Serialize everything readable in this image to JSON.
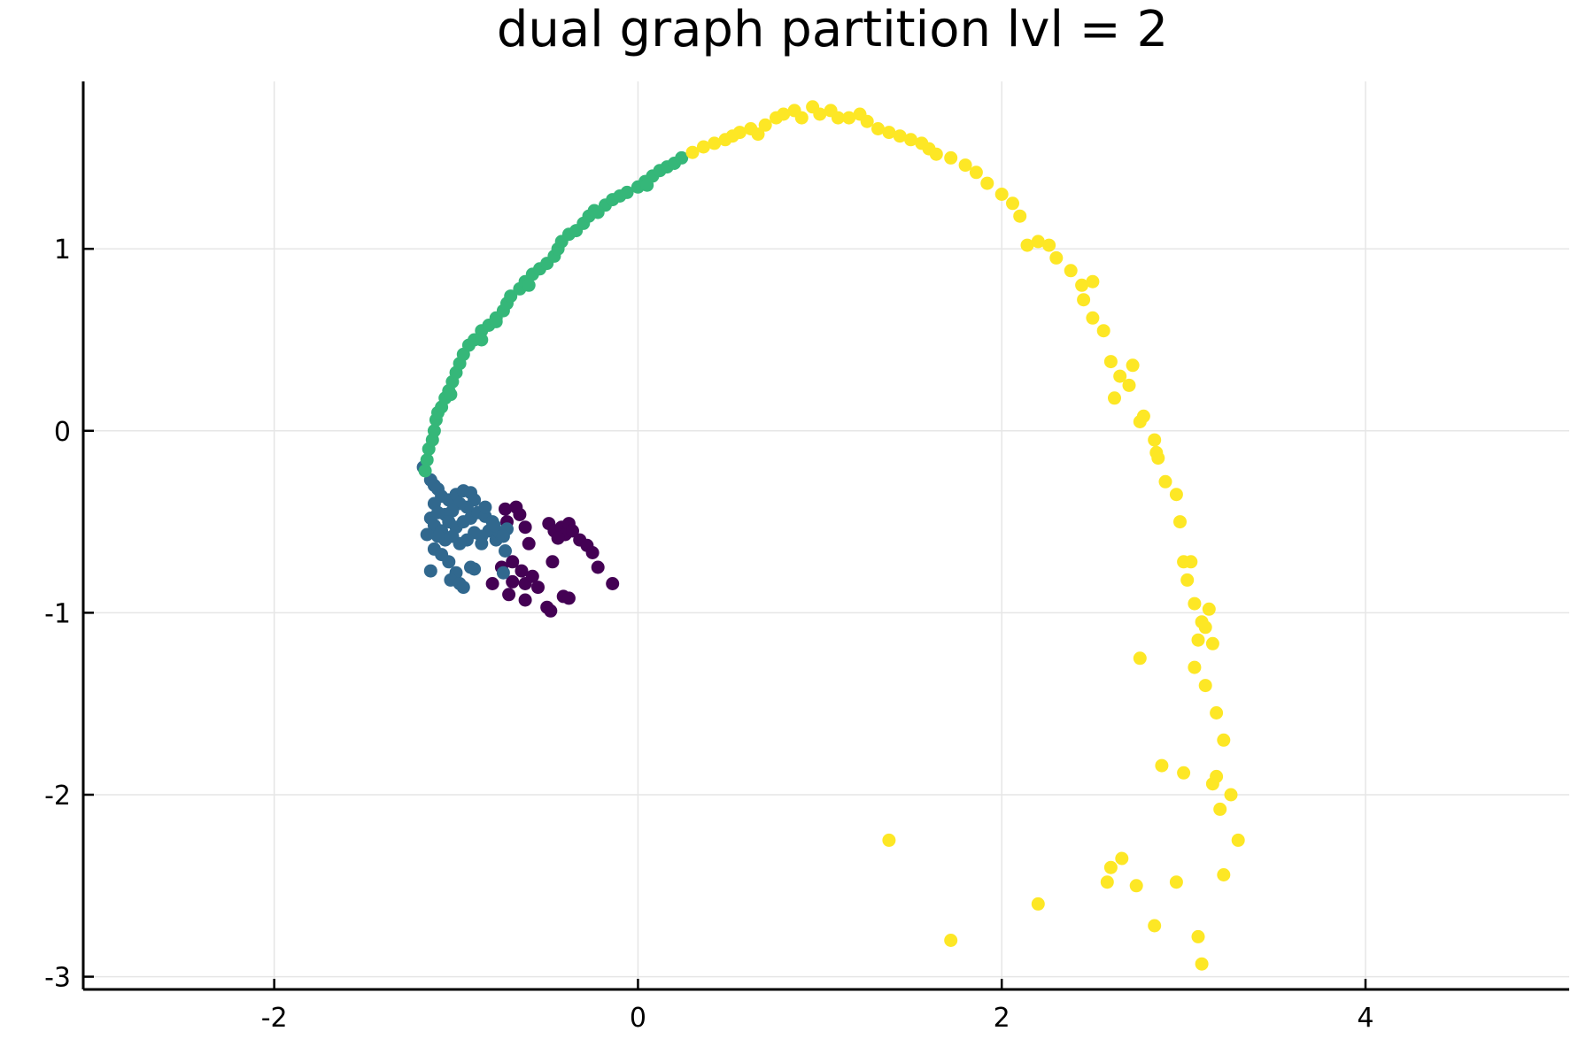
{
  "chart_data": {
    "type": "scatter",
    "title": "dual graph partition lvl = 2",
    "xlabel": "",
    "ylabel": "",
    "xlim": [
      -3.05,
      5.12
    ],
    "ylim": [
      -3.07,
      1.92
    ],
    "xticks": [
      -2,
      0,
      2,
      4
    ],
    "yticks": [
      -3,
      -2,
      -1,
      0,
      1
    ],
    "xtick_labels": [
      "-2",
      "0",
      "2",
      "4"
    ],
    "ytick_labels": [
      "-3",
      "-2",
      "-1",
      "0",
      "1"
    ],
    "grid": true,
    "legend": "none",
    "series": [
      {
        "color": "#440154",
        "points": [
          [
            -0.73,
            -0.43
          ],
          [
            -0.67,
            -0.42
          ],
          [
            -0.65,
            -0.46
          ],
          [
            -0.72,
            -0.5
          ],
          [
            -0.62,
            -0.53
          ],
          [
            -0.49,
            -0.51
          ],
          [
            -0.46,
            -0.55
          ],
          [
            -0.42,
            -0.53
          ],
          [
            -0.4,
            -0.57
          ],
          [
            -0.38,
            -0.51
          ],
          [
            -0.44,
            -0.59
          ],
          [
            -0.36,
            -0.55
          ],
          [
            -0.32,
            -0.6
          ],
          [
            -0.28,
            -0.63
          ],
          [
            -0.25,
            -0.67
          ],
          [
            -0.22,
            -0.75
          ],
          [
            -0.14,
            -0.84
          ],
          [
            -0.69,
            -0.72
          ],
          [
            -0.64,
            -0.77
          ],
          [
            -0.6,
            -0.62
          ],
          [
            -0.62,
            -0.84
          ],
          [
            -0.58,
            -0.8
          ],
          [
            -0.55,
            -0.86
          ],
          [
            -0.69,
            -0.83
          ],
          [
            -0.71,
            -0.9
          ],
          [
            -0.62,
            -0.93
          ],
          [
            -0.5,
            -0.97
          ],
          [
            -0.48,
            -0.99
          ],
          [
            -0.41,
            -0.91
          ],
          [
            -0.38,
            -0.92
          ],
          [
            -0.8,
            -0.84
          ],
          [
            -0.47,
            -0.72
          ],
          [
            -0.75,
            -0.75
          ]
        ]
      },
      {
        "color": "#31688e",
        "points": [
          [
            -1.18,
            -0.2
          ],
          [
            -1.14,
            -0.27
          ],
          [
            -1.12,
            -0.3
          ],
          [
            -1.1,
            -0.32
          ],
          [
            -1.08,
            -0.36
          ],
          [
            -1.12,
            -0.4
          ],
          [
            -1.04,
            -0.38
          ],
          [
            -1.0,
            -0.35
          ],
          [
            -0.96,
            -0.33
          ],
          [
            -0.92,
            -0.34
          ],
          [
            -0.9,
            -0.38
          ],
          [
            -0.94,
            -0.42
          ],
          [
            -0.98,
            -0.4
          ],
          [
            -1.02,
            -0.44
          ],
          [
            -1.06,
            -0.46
          ],
          [
            -1.14,
            -0.48
          ],
          [
            -1.12,
            -0.52
          ],
          [
            -1.08,
            -0.55
          ],
          [
            -1.04,
            -0.5
          ],
          [
            -1.0,
            -0.53
          ],
          [
            -0.96,
            -0.5
          ],
          [
            -0.92,
            -0.48
          ],
          [
            -0.88,
            -0.45
          ],
          [
            -0.84,
            -0.47
          ],
          [
            -0.8,
            -0.5
          ],
          [
            -0.82,
            -0.55
          ],
          [
            -0.86,
            -0.58
          ],
          [
            -0.9,
            -0.56
          ],
          [
            -0.94,
            -0.6
          ],
          [
            -0.98,
            -0.62
          ],
          [
            -1.02,
            -0.58
          ],
          [
            -1.06,
            -0.6
          ],
          [
            -1.1,
            -0.58
          ],
          [
            -1.16,
            -0.57
          ],
          [
            -1.12,
            -0.65
          ],
          [
            -1.08,
            -0.68
          ],
          [
            -1.04,
            -0.72
          ],
          [
            -1.0,
            -0.78
          ],
          [
            -1.03,
            -0.82
          ],
          [
            -0.98,
            -0.84
          ],
          [
            -0.96,
            -0.86
          ],
          [
            -0.9,
            -0.76
          ],
          [
            -0.92,
            -0.75
          ],
          [
            -0.78,
            -0.6
          ],
          [
            -0.76,
            -0.56
          ],
          [
            -0.72,
            -0.54
          ],
          [
            -0.74,
            -0.58
          ],
          [
            -0.73,
            -0.66
          ],
          [
            -0.74,
            -0.78
          ],
          [
            -0.79,
            -0.52
          ],
          [
            -0.86,
            -0.62
          ],
          [
            -1.14,
            -0.77
          ],
          [
            -0.84,
            -0.42
          ],
          [
            -1.1,
            -0.45
          ]
        ]
      },
      {
        "color": "#35b779",
        "points": [
          [
            -1.17,
            -0.22
          ],
          [
            -1.16,
            -0.16
          ],
          [
            -1.15,
            -0.1
          ],
          [
            -1.13,
            -0.05
          ],
          [
            -1.12,
            0.0
          ],
          [
            -1.11,
            0.06
          ],
          [
            -1.1,
            0.1
          ],
          [
            -1.08,
            0.13
          ],
          [
            -1.06,
            0.18
          ],
          [
            -1.04,
            0.22
          ],
          [
            -1.02,
            0.27
          ],
          [
            -1.0,
            0.32
          ],
          [
            -0.98,
            0.37
          ],
          [
            -0.96,
            0.42
          ],
          [
            -0.93,
            0.47
          ],
          [
            -0.9,
            0.5
          ],
          [
            -0.86,
            0.55
          ],
          [
            -0.82,
            0.58
          ],
          [
            -0.78,
            0.62
          ],
          [
            -0.74,
            0.66
          ],
          [
            -0.72,
            0.7
          ],
          [
            -0.7,
            0.74
          ],
          [
            -0.65,
            0.78
          ],
          [
            -0.62,
            0.82
          ],
          [
            -0.58,
            0.86
          ],
          [
            -0.54,
            0.89
          ],
          [
            -0.5,
            0.92
          ],
          [
            -0.46,
            0.96
          ],
          [
            -0.44,
            1.0
          ],
          [
            -0.42,
            1.04
          ],
          [
            -0.38,
            1.08
          ],
          [
            -0.34,
            1.1
          ],
          [
            -0.3,
            1.14
          ],
          [
            -0.27,
            1.18
          ],
          [
            -0.24,
            1.21
          ],
          [
            -0.18,
            1.24
          ],
          [
            -0.14,
            1.27
          ],
          [
            -0.1,
            1.29
          ],
          [
            -0.06,
            1.31
          ],
          [
            0.0,
            1.34
          ],
          [
            0.04,
            1.37
          ],
          [
            0.08,
            1.4
          ],
          [
            0.12,
            1.43
          ],
          [
            0.16,
            1.45
          ],
          [
            0.2,
            1.47
          ],
          [
            0.24,
            1.5
          ],
          [
            -0.78,
            0.6
          ],
          [
            -0.86,
            0.5
          ],
          [
            -1.03,
            0.2
          ],
          [
            -0.6,
            0.8
          ],
          [
            -0.22,
            1.2
          ],
          [
            0.05,
            1.35
          ]
        ]
      },
      {
        "color": "#fde725",
        "points": [
          [
            0.3,
            1.53
          ],
          [
            0.36,
            1.56
          ],
          [
            0.42,
            1.58
          ],
          [
            0.48,
            1.6
          ],
          [
            0.52,
            1.62
          ],
          [
            0.56,
            1.64
          ],
          [
            0.62,
            1.66
          ],
          [
            0.66,
            1.63
          ],
          [
            0.7,
            1.68
          ],
          [
            0.76,
            1.72
          ],
          [
            0.8,
            1.74
          ],
          [
            0.86,
            1.76
          ],
          [
            0.9,
            1.72
          ],
          [
            0.96,
            1.78
          ],
          [
            1.0,
            1.74
          ],
          [
            1.06,
            1.76
          ],
          [
            1.1,
            1.72
          ],
          [
            1.16,
            1.72
          ],
          [
            1.22,
            1.74
          ],
          [
            1.26,
            1.7
          ],
          [
            1.32,
            1.66
          ],
          [
            1.38,
            1.64
          ],
          [
            1.44,
            1.62
          ],
          [
            1.5,
            1.6
          ],
          [
            1.56,
            1.58
          ],
          [
            1.6,
            1.55
          ],
          [
            1.64,
            1.52
          ],
          [
            1.72,
            1.5
          ],
          [
            1.8,
            1.46
          ],
          [
            1.86,
            1.42
          ],
          [
            1.92,
            1.36
          ],
          [
            2.0,
            1.3
          ],
          [
            2.06,
            1.25
          ],
          [
            2.1,
            1.18
          ],
          [
            2.14,
            1.02
          ],
          [
            2.2,
            1.04
          ],
          [
            2.26,
            1.02
          ],
          [
            2.3,
            0.95
          ],
          [
            2.38,
            0.88
          ],
          [
            2.44,
            0.8
          ],
          [
            2.5,
            0.82
          ],
          [
            2.45,
            0.72
          ],
          [
            2.5,
            0.62
          ],
          [
            2.56,
            0.55
          ],
          [
            2.6,
            0.38
          ],
          [
            2.65,
            0.3
          ],
          [
            2.7,
            0.25
          ],
          [
            2.72,
            0.36
          ],
          [
            2.62,
            0.18
          ],
          [
            2.76,
            0.05
          ],
          [
            2.78,
            0.08
          ],
          [
            2.84,
            -0.05
          ],
          [
            2.85,
            -0.12
          ],
          [
            2.86,
            -0.15
          ],
          [
            2.9,
            -0.28
          ],
          [
            2.96,
            -0.35
          ],
          [
            2.98,
            -0.5
          ],
          [
            3.0,
            -0.72
          ],
          [
            3.04,
            -0.72
          ],
          [
            3.02,
            -0.82
          ],
          [
            3.06,
            -0.95
          ],
          [
            3.1,
            -1.05
          ],
          [
            3.14,
            -0.98
          ],
          [
            3.08,
            -1.15
          ],
          [
            3.16,
            -1.17
          ],
          [
            3.12,
            -1.08
          ],
          [
            2.76,
            -1.25
          ],
          [
            3.06,
            -1.3
          ],
          [
            3.12,
            -1.4
          ],
          [
            3.18,
            -1.55
          ],
          [
            3.22,
            -1.7
          ],
          [
            2.88,
            -1.84
          ],
          [
            3.0,
            -1.88
          ],
          [
            3.18,
            -1.9
          ],
          [
            3.16,
            -1.94
          ],
          [
            3.26,
            -2.0
          ],
          [
            3.2,
            -2.08
          ],
          [
            3.3,
            -2.25
          ],
          [
            1.38,
            -2.25
          ],
          [
            2.66,
            -2.35
          ],
          [
            2.6,
            -2.4
          ],
          [
            2.58,
            -2.48
          ],
          [
            2.74,
            -2.5
          ],
          [
            2.96,
            -2.48
          ],
          [
            3.22,
            -2.44
          ],
          [
            2.2,
            -2.6
          ],
          [
            2.84,
            -2.72
          ],
          [
            3.08,
            -2.78
          ],
          [
            1.72,
            -2.8
          ],
          [
            3.1,
            -2.93
          ]
        ]
      }
    ]
  }
}
